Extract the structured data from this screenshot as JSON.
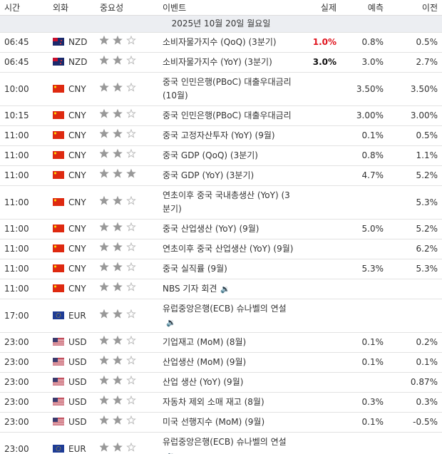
{
  "header": [
    "시간",
    "외화",
    "중요성",
    "이벤트",
    "실제",
    "예측",
    "이전"
  ],
  "date": "2025년 10월 20일 월요일",
  "max_importance": 3,
  "rows": [
    {
      "time": "06:45",
      "currency": "NZD",
      "importance": 2,
      "event": "소비자물가지수 (QoQ) (3분기)",
      "actual": "1.0%",
      "actual_color": "#e0141e",
      "forecast": "0.8%",
      "previous": "0.5%"
    },
    {
      "time": "06:45",
      "currency": "NZD",
      "importance": 2,
      "event": "소비자물가지수 (YoY) (3분기)",
      "actual": "3.0%",
      "actual_color": "#111111",
      "forecast": "3.0%",
      "previous": "2.7%"
    },
    {
      "time": "10:00",
      "currency": "CNY",
      "importance": 2,
      "event": "중국 인민은행(PBoC) 대출우대금리 (10월)",
      "forecast": "3.50%",
      "previous": "3.50%"
    },
    {
      "time": "10:15",
      "currency": "CNY",
      "importance": 2,
      "event": "중국 인민은행(PBoC) 대출우대금리",
      "forecast": "3.00%",
      "previous": "3.00%"
    },
    {
      "time": "11:00",
      "currency": "CNY",
      "importance": 2,
      "event": "중국 고정자산투자 (YoY) (9월)",
      "forecast": "0.1%",
      "previous": "0.5%"
    },
    {
      "time": "11:00",
      "currency": "CNY",
      "importance": 2,
      "event": "중국 GDP (QoQ) (3분기)",
      "forecast": "0.8%",
      "previous": "1.1%"
    },
    {
      "time": "11:00",
      "currency": "CNY",
      "importance": 3,
      "event": "중국 GDP (YoY) (3분기)",
      "forecast": "4.7%",
      "previous": "5.2%"
    },
    {
      "time": "11:00",
      "currency": "CNY",
      "importance": 2,
      "event": "연초이후 중국 국내총생산 (YoY) (3분기)",
      "previous": "5.3%"
    },
    {
      "time": "11:00",
      "currency": "CNY",
      "importance": 2,
      "event": "중국 산업생산 (YoY) (9월)",
      "forecast": "5.0%",
      "previous": "5.2%"
    },
    {
      "time": "11:00",
      "currency": "CNY",
      "importance": 2,
      "event": "연초이후 중국 산업생산 (YoY) (9월)",
      "previous": "6.2%"
    },
    {
      "time": "11:00",
      "currency": "CNY",
      "importance": 2,
      "event": "중국 실직률 (9월)",
      "forecast": "5.3%",
      "previous": "5.3%"
    },
    {
      "time": "11:00",
      "currency": "CNY",
      "importance": 2,
      "event": "NBS 기자 회견",
      "speech": true
    },
    {
      "time": "17:00",
      "currency": "EUR",
      "importance": 2,
      "event": "유럽중앙은행(ECB) 슈나벨의 연설",
      "speech": true
    },
    {
      "time": "23:00",
      "currency": "USD",
      "importance": 2,
      "event": "기업재고 (MoM) (8월)",
      "forecast": "0.1%",
      "previous": "0.2%"
    },
    {
      "time": "23:00",
      "currency": "USD",
      "importance": 2,
      "event": "산업생산 (MoM) (9월)",
      "forecast": "0.1%",
      "previous": "0.1%"
    },
    {
      "time": "23:00",
      "currency": "USD",
      "importance": 2,
      "event": "산업 생산 (YoY) (9월)",
      "previous": "0.87%"
    },
    {
      "time": "23:00",
      "currency": "USD",
      "importance": 2,
      "event": "자동차 제외 소매 재고 (8월)",
      "forecast": "0.3%",
      "previous": "0.3%"
    },
    {
      "time": "23:00",
      "currency": "USD",
      "importance": 2,
      "event": "미국 선행지수 (MoM) (9월)",
      "forecast": "0.1%",
      "previous": "-0.5%"
    },
    {
      "time": "23:00",
      "currency": "EUR",
      "importance": 2,
      "event": "유럽중앙은행(ECB) 슈나벨의 연설",
      "speech": true
    }
  ]
}
